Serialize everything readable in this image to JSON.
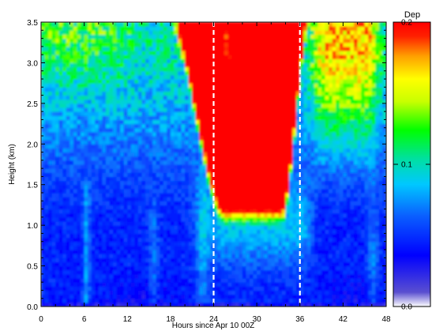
{
  "chart_data": {
    "type": "heatmap",
    "title": "",
    "xlabel": "Hours since Apr 10 00Z",
    "ylabel": "Height (km)",
    "xlim": [
      0,
      48
    ],
    "ylim": [
      0,
      3.5
    ],
    "x_ticks": [
      {
        "value": 0,
        "label": "0"
      },
      {
        "value": 6,
        "label": "6"
      },
      {
        "value": 12,
        "label": "12"
      },
      {
        "value": 18,
        "label": "18"
      },
      {
        "value": 24,
        "label": "24"
      },
      {
        "value": 30,
        "label": "30"
      },
      {
        "value": 36,
        "label": "36"
      },
      {
        "value": 42,
        "label": "42"
      },
      {
        "value": 48,
        "label": "48"
      }
    ],
    "y_ticks": [
      {
        "value": 0.0,
        "label": "0.0"
      },
      {
        "value": 0.5,
        "label": "0.5"
      },
      {
        "value": 1.0,
        "label": "1.0"
      },
      {
        "value": 1.5,
        "label": "1.5"
      },
      {
        "value": 2.0,
        "label": "2.0"
      },
      {
        "value": 2.5,
        "label": "2.5"
      },
      {
        "value": 3.0,
        "label": "3.0"
      },
      {
        "value": 3.5,
        "label": "3.5"
      }
    ],
    "colorbar": {
      "title": "Dep",
      "range": [
        0,
        0.2
      ],
      "ticks": [
        {
          "value": 0.0,
          "label": "0.0"
        },
        {
          "value": 0.1,
          "label": "0.1"
        },
        {
          "value": 0.2,
          "label": "0.2"
        }
      ],
      "colors": [
        "#ffffff",
        "#5a4fd0",
        "#0000ff",
        "#0a60ff",
        "#00c8ff",
        "#00e0a0",
        "#00ff00",
        "#c8ff00",
        "#ffff00",
        "#ffa000",
        "#ff2000",
        "#ff0000"
      ]
    },
    "reference_lines_x": [
      24,
      36
    ],
    "reference_line_style": "white dashed",
    "grid": false,
    "features": [
      {
        "description": "high depolarization layer (red)",
        "x_start": 18,
        "x_end": 36.5,
        "y_bottom_min": 1.05,
        "y_top": 3.5
      }
    ]
  }
}
